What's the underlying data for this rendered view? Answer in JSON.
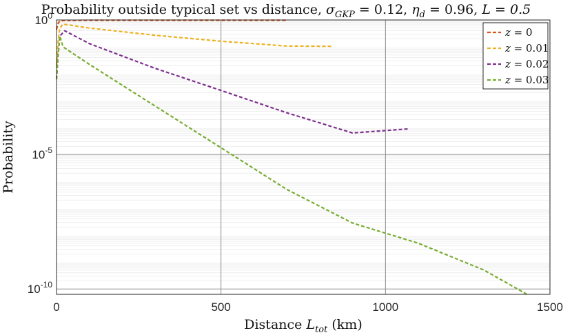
{
  "chart_data": {
    "type": "line",
    "title": "Probability outside typical set vs distance, σ_GKP = 0.12, η_d = 0.96, L = 0.5",
    "title_parts": {
      "prefix": "Probability outside typical set vs distance, ",
      "sigma_symbol": "σ",
      "sigma_sub": "GKP",
      "sigma_value": " = 0.12, ",
      "eta_symbol": "η",
      "eta_sub": "d",
      "eta_value": " = 0.96, ",
      "l_part": "L = 0.5"
    },
    "xlabel": "Distance L_tot (km)",
    "xlabel_parts": {
      "prefix": "Distance ",
      "symbol": "L",
      "sub": "tot",
      "suffix": " (km)"
    },
    "ylabel": "Probability",
    "x_scale": "linear",
    "y_scale": "log",
    "xlim": [
      0,
      1500
    ],
    "ylim_log10": [
      -10.2,
      0
    ],
    "x_ticks": [
      0,
      500,
      1000,
      1500
    ],
    "x_tick_labels": [
      "0",
      "500",
      "1000",
      "1500"
    ],
    "y_ticks": [
      {
        "base": "10",
        "exp": "0",
        "log10": 0
      },
      {
        "base": "10",
        "exp": "-5",
        "log10": -5
      },
      {
        "base": "10",
        "exp": "-10",
        "log10": -10
      }
    ],
    "grid": true,
    "legend_position": "top-right",
    "line_style": "dashed",
    "series": [
      {
        "name": "z = 0",
        "label_var": "z",
        "label_value": " = 0",
        "color": "#D95319",
        "points": [
          [
            0,
            -0.35
          ],
          [
            5,
            -0.12
          ],
          [
            10,
            -0.04
          ],
          [
            20,
            -0.02
          ],
          [
            100,
            -0.01
          ],
          [
            300,
            -0.01
          ],
          [
            500,
            -0.01
          ],
          [
            700,
            -0.01
          ]
        ]
      },
      {
        "name": "z = 0.01",
        "label_var": "z",
        "label_value": " = 0.01",
        "color": "#EDB120",
        "points": [
          [
            0,
            -1.7
          ],
          [
            5,
            -0.8
          ],
          [
            10,
            -0.3
          ],
          [
            20,
            -0.15
          ],
          [
            100,
            -0.3
          ],
          [
            300,
            -0.57
          ],
          [
            500,
            -0.79
          ],
          [
            700,
            -0.97
          ],
          [
            840,
            -0.98
          ]
        ]
      },
      {
        "name": "z = 0.02",
        "label_var": "z",
        "label_value": " = 0.02",
        "color": "#7E2F8E",
        "points": [
          [
            0,
            -2.2
          ],
          [
            5,
            -1.3
          ],
          [
            10,
            -0.6
          ],
          [
            25,
            -0.4
          ],
          [
            100,
            -0.88
          ],
          [
            300,
            -1.8
          ],
          [
            500,
            -2.62
          ],
          [
            700,
            -3.45
          ],
          [
            900,
            -4.2
          ],
          [
            1070,
            -4.05
          ]
        ]
      },
      {
        "name": "z = 0.03",
        "label_var": "z",
        "label_value": " = 0.03",
        "color": "#77AC30",
        "points": [
          [
            0,
            -2.2
          ],
          [
            5,
            -1.3
          ],
          [
            10,
            -0.6
          ],
          [
            20,
            -1.0
          ],
          [
            100,
            -1.65
          ],
          [
            300,
            -3.2
          ],
          [
            500,
            -4.75
          ],
          [
            700,
            -6.3
          ],
          [
            900,
            -7.55
          ],
          [
            1100,
            -8.3
          ],
          [
            1300,
            -9.3
          ],
          [
            1430,
            -10.2
          ]
        ]
      }
    ]
  }
}
